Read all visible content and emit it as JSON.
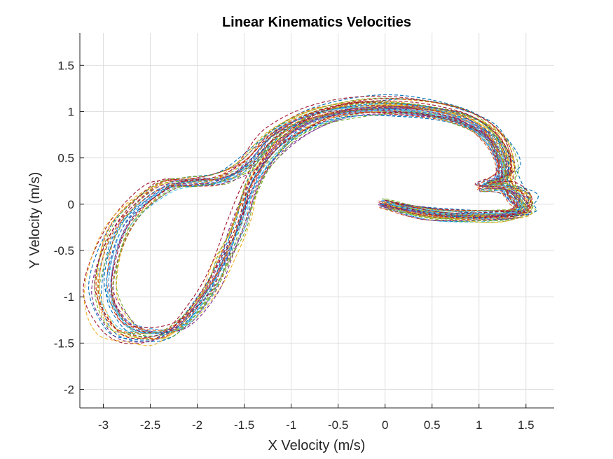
{
  "chart_data": {
    "type": "line",
    "title": "Linear Kinematics Velocities",
    "xlabel": "X Velocity (m/s)",
    "ylabel": "Y Velocity (m/s)",
    "xlim": [
      -3.25,
      1.8
    ],
    "ylim": [
      -2.2,
      1.85
    ],
    "xticks": [
      -3,
      -2.5,
      -2,
      -1.5,
      -1,
      -0.5,
      0,
      0.5,
      1,
      1.5
    ],
    "xtick_labels": [
      "-3",
      "-2.5",
      "-2",
      "-1.5",
      "-1",
      "-0.5",
      "0",
      "0.5",
      "1",
      "1.5"
    ],
    "yticks": [
      1.5,
      1,
      0.5,
      0,
      -0.5,
      -1,
      -1.5,
      -2
    ],
    "ytick_labels": [
      "1.5",
      "1",
      "0.5",
      "0",
      "-0.5",
      "-1",
      "-1.5",
      "-2"
    ],
    "grid": true,
    "line_style": "dashed",
    "trace_colors": [
      "#0072BD",
      "#D95319",
      "#EDB120",
      "#7E2F8E",
      "#77AC30",
      "#4DBEEE",
      "#A2142F"
    ],
    "trace_count": 28,
    "base_path": {
      "x": [
        0.0,
        0.5,
        1.1,
        1.45,
        1.55,
        1.35,
        1.1,
        1.35,
        1.2,
        0.75,
        0.0,
        -0.7,
        -1.2,
        -1.5,
        -1.8,
        -2.1,
        -2.45,
        -2.9,
        -3.08,
        -2.95,
        -2.7,
        -2.3,
        -1.95,
        -1.75,
        -1.6,
        -1.45,
        -1.2,
        -0.85,
        -0.35,
        0.3,
        0.85,
        1.15,
        1.3,
        1.35,
        1.45,
        1.55,
        1.3,
        0.6,
        0.0
      ],
      "y": [
        0.0,
        -0.12,
        -0.15,
        -0.1,
        0.05,
        0.18,
        0.2,
        0.35,
        0.75,
        1.0,
        1.1,
        1.02,
        0.78,
        0.45,
        0.28,
        0.25,
        0.18,
        -0.25,
        -0.9,
        -1.3,
        -1.45,
        -1.4,
        -1.0,
        -0.6,
        -0.22,
        0.22,
        0.6,
        0.88,
        1.05,
        1.05,
        0.95,
        0.75,
        0.5,
        0.25,
        0.05,
        -0.08,
        -0.12,
        -0.1,
        0.0
      ]
    }
  }
}
